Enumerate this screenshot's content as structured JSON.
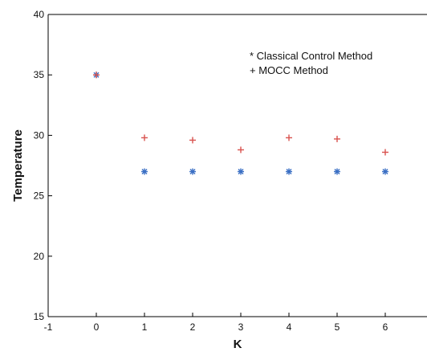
{
  "chart_data": {
    "type": "scatter",
    "title": "",
    "xlabel": "K",
    "ylabel": "Temperature",
    "xlim": [
      -1,
      7
    ],
    "ylim": [
      15,
      40
    ],
    "xticks": [
      "-1",
      "0",
      "1",
      "2",
      "3",
      "4",
      "5",
      "6"
    ],
    "yticks": [
      "15",
      "20",
      "25",
      "30",
      "35",
      "40"
    ],
    "grid": false,
    "legend_placement": "top-right",
    "legend": [
      "* Classical Control Method",
      "+ MOCC Method"
    ],
    "series": [
      {
        "name": "Classical Control Method",
        "marker": "*",
        "color": "#3a6fc4",
        "x": [
          0,
          1,
          2,
          3,
          4,
          5,
          6
        ],
        "y": [
          35,
          27,
          27,
          27,
          27,
          27,
          27
        ]
      },
      {
        "name": "MOCC Method",
        "marker": "+",
        "color": "#d9534f",
        "x": [
          0,
          1,
          2,
          3,
          4,
          5,
          6
        ],
        "y": [
          35,
          29.8,
          29.6,
          28.8,
          29.8,
          29.7,
          28.6
        ]
      }
    ]
  }
}
